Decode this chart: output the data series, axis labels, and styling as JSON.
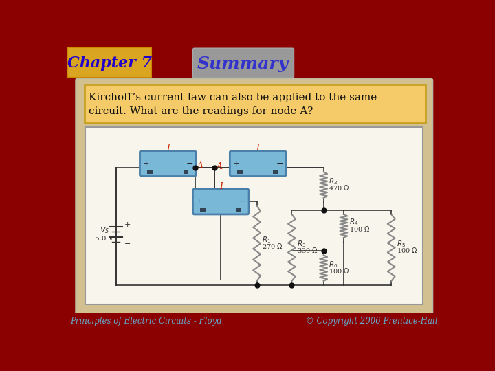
{
  "title": "Summary",
  "chapter": "Chapter 7",
  "question_text": "Kirchoff’s current law can also be applied to the same\ncircuit. What are the readings for node A?",
  "footer_left": "Principles of Electric Circuits - Floyd",
  "footer_right": "© Copyright 2006 Prentice-Hall",
  "bg_color": "#8B0000",
  "slide_bg": "#D2C090",
  "chapter_bg": "#DAA520",
  "chapter_text_color": "#2200CC",
  "summary_bg": "#999999",
  "summary_text_color": "#3333CC",
  "question_box_bg": "#F5CB6A",
  "question_box_border": "#C8A020",
  "circuit_bg": "#F8F5EC",
  "circuit_border": "#888888",
  "ammeter_color": "#7AB8D8",
  "ammeter_border": "#4A7FAA",
  "wire_color": "#333333",
  "resistor_color": "#888888",
  "label_color_red": "#CC2200",
  "label_color_black": "#111111",
  "node_color": "#111111",
  "footer_bg": "#8B0000",
  "footer_text_color": "#66AACC"
}
